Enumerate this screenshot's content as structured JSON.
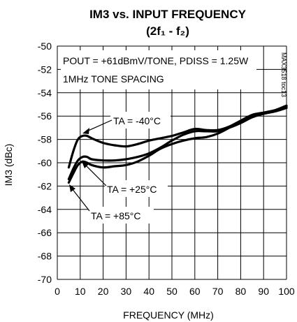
{
  "chart_data": {
    "type": "line",
    "title_line1": "IM3 vs. INPUT FREQUENCY",
    "title_line2": "(2f₁ - f₂)",
    "xlabel": "FREQUENCY (MHz)",
    "ylabel": "IM3 (dBc)",
    "xlim": [
      0,
      100
    ],
    "ylim": [
      -70,
      -50
    ],
    "xticks": [
      0,
      10,
      20,
      30,
      40,
      50,
      60,
      70,
      80,
      90,
      100
    ],
    "yticks": [
      -50,
      -52,
      -54,
      -56,
      -58,
      -60,
      -62,
      -64,
      -66,
      -68,
      -70
    ],
    "grid": true,
    "annotations": {
      "conditions_line1": "POUT = +61dBmV/TONE, PDISS = 1.25W",
      "conditions_line2": "1MHz TONE SPACING",
      "side_code": "MAX3518 toc13"
    },
    "series": [
      {
        "name": "TA = -40°C",
        "x": [
          5,
          7,
          9,
          11,
          13,
          15,
          20,
          25,
          30,
          35,
          40,
          45,
          50,
          55,
          60,
          65,
          70,
          75,
          80,
          85,
          90,
          95,
          100
        ],
        "y": [
          -60.4,
          -59.0,
          -58.0,
          -57.7,
          -57.7,
          -57.9,
          -58.3,
          -58.5,
          -58.6,
          -58.4,
          -58.1,
          -57.9,
          -57.7,
          -57.4,
          -57.1,
          -57.2,
          -57.2,
          -56.9,
          -56.4,
          -56.0,
          -55.8,
          -55.6,
          -55.3
        ]
      },
      {
        "name": "TA = +25°C",
        "x": [
          5,
          7,
          9,
          11,
          13,
          15,
          20,
          25,
          30,
          35,
          40,
          45,
          50,
          55,
          60,
          65,
          70,
          75,
          80,
          85,
          90,
          95,
          100
        ],
        "y": [
          -61.4,
          -60.5,
          -59.8,
          -59.5,
          -59.5,
          -59.7,
          -59.8,
          -59.8,
          -59.7,
          -59.5,
          -59.2,
          -58.7,
          -58.1,
          -57.6,
          -57.3,
          -57.3,
          -57.3,
          -57.0,
          -56.6,
          -56.1,
          -55.8,
          -55.5,
          -55.1
        ]
      },
      {
        "name": "TA = +85°C",
        "x": [
          5,
          7,
          9,
          11,
          13,
          15,
          20,
          25,
          30,
          35,
          40,
          45,
          50,
          55,
          60,
          65,
          70,
          75,
          80,
          85,
          90,
          95,
          100
        ],
        "y": [
          -61.7,
          -60.9,
          -60.2,
          -59.9,
          -60.0,
          -60.2,
          -60.4,
          -60.3,
          -60.2,
          -59.9,
          -59.4,
          -58.8,
          -58.4,
          -58.1,
          -57.9,
          -57.8,
          -57.5,
          -57.0,
          -56.4,
          -55.9,
          -55.7,
          -55.5,
          -55.2
        ]
      }
    ]
  }
}
